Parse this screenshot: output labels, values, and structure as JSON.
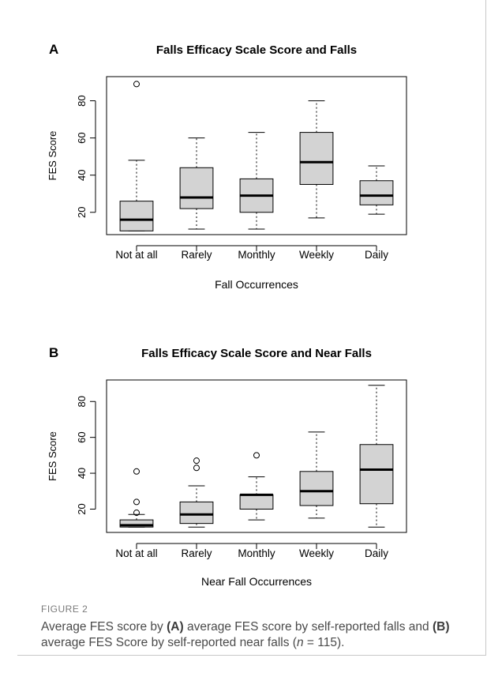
{
  "chart_data": [
    {
      "type": "boxplot",
      "panel_label": "A",
      "title": "Falls Efficacy Scale Score and Falls",
      "xlabel": "Fall Occurrences",
      "ylabel": "FES Score",
      "ylim": [
        8,
        93
      ],
      "yticks": [
        20,
        40,
        60,
        80
      ],
      "categories": [
        "Not at all",
        "Rarely",
        "Monthly",
        "Weekly",
        "Daily"
      ],
      "boxes": [
        {
          "min": 10,
          "q1": 10,
          "median": 16,
          "q3": 26,
          "max": 48,
          "outliers": [
            89
          ]
        },
        {
          "min": 11,
          "q1": 22,
          "median": 28,
          "q3": 44,
          "max": 60,
          "outliers": []
        },
        {
          "min": 11,
          "q1": 20,
          "median": 29,
          "q3": 38,
          "max": 63,
          "outliers": []
        },
        {
          "min": 17,
          "q1": 35,
          "median": 47,
          "q3": 63,
          "max": 80,
          "outliers": []
        },
        {
          "min": 19,
          "q1": 24,
          "median": 29,
          "q3": 37,
          "max": 45,
          "outliers": []
        }
      ],
      "box_color": "#d3d3d3"
    },
    {
      "type": "boxplot",
      "panel_label": "B",
      "title": "Falls Efficacy Scale Score and Near Falls",
      "xlabel": "Near Fall Occurrences",
      "ylabel": "FES Score",
      "ylim": [
        7,
        92
      ],
      "yticks": [
        20,
        40,
        60,
        80
      ],
      "categories": [
        "Not at all",
        "Rarely",
        "Monthly",
        "Weekly",
        "Daily"
      ],
      "boxes": [
        {
          "min": 10,
          "q1": 10,
          "median": 11,
          "q3": 14,
          "max": 17,
          "outliers": [
            18,
            24,
            41
          ]
        },
        {
          "min": 10,
          "q1": 12,
          "median": 17,
          "q3": 24,
          "max": 33,
          "outliers": [
            43,
            47
          ]
        },
        {
          "min": 14,
          "q1": 20,
          "median": 28,
          "q3": 28,
          "max": 38,
          "outliers": [
            50
          ]
        },
        {
          "min": 15,
          "q1": 22,
          "median": 30,
          "q3": 41,
          "max": 63,
          "outliers": []
        },
        {
          "min": 10,
          "q1": 23,
          "median": 42,
          "q3": 56,
          "max": 89,
          "outliers": []
        }
      ],
      "box_color": "#d3d3d3"
    }
  ],
  "caption": {
    "label": "FIGURE 2",
    "prefix": "Average FES score by ",
    "a_tag": "(A)",
    "a_text": " average FES score by self-reported falls and ",
    "b_tag": "(B)",
    "b_text": " average FES Score by self-reported near falls (",
    "n_var": "n",
    "n_text": " = 115)."
  }
}
